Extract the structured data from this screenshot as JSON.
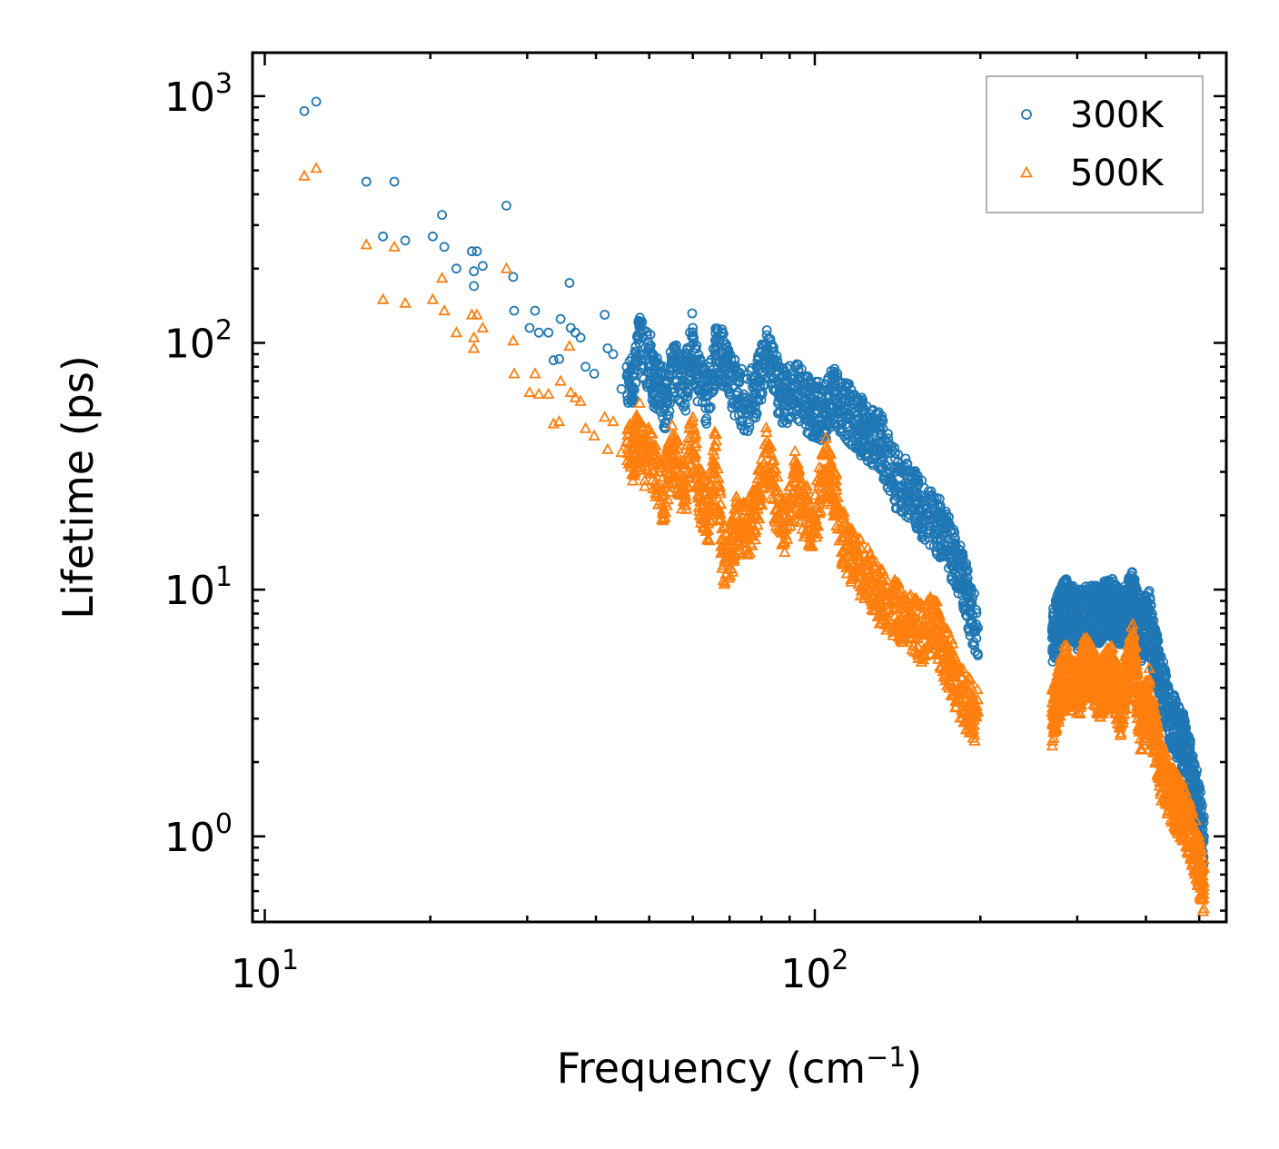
{
  "chart_data": {
    "type": "scatter",
    "title": "",
    "xlabel": "Frequency (cm",
    "xlabel_sup": "−1",
    "xlabel_close": ")",
    "ylabel": "Lifetime (ps)",
    "xscale": "log",
    "yscale": "log",
    "xlim": [
      9.5,
      560
    ],
    "ylim": [
      0.45,
      1500
    ],
    "x_ticks": [
      {
        "value": 10,
        "base": "10",
        "exp": "1"
      },
      {
        "value": 100,
        "base": "10",
        "exp": "2"
      }
    ],
    "y_ticks": [
      {
        "value": 1,
        "base": "10",
        "exp": "0"
      },
      {
        "value": 10,
        "base": "10",
        "exp": "1"
      },
      {
        "value": 100,
        "base": "10",
        "exp": "2"
      },
      {
        "value": 1000,
        "base": "10",
        "exp": "3"
      }
    ],
    "legend_position": "top-right",
    "colors": {
      "300K": "#1f77b4",
      "500K": "#ff7f0e"
    },
    "series": [
      {
        "name": "300K",
        "marker": "circle",
        "color": "#1f77b4",
        "points": [
          [
            11.8,
            870
          ],
          [
            12.4,
            950
          ],
          [
            15.3,
            450
          ],
          [
            16.4,
            270
          ],
          [
            17.2,
            450
          ],
          [
            18.0,
            260
          ],
          [
            20.2,
            270
          ],
          [
            21.0,
            330
          ],
          [
            21.2,
            245
          ],
          [
            22.3,
            200
          ],
          [
            23.8,
            235
          ],
          [
            24.0,
            195
          ],
          [
            24.0,
            170
          ],
          [
            24.3,
            235
          ],
          [
            24.9,
            205
          ],
          [
            27.5,
            360
          ],
          [
            28.3,
            185
          ],
          [
            28.4,
            135
          ],
          [
            30.3,
            115
          ],
          [
            31.0,
            135
          ],
          [
            31.5,
            110
          ],
          [
            32.8,
            110
          ],
          [
            33.5,
            85
          ],
          [
            34.3,
            86
          ],
          [
            34.5,
            125
          ],
          [
            35.8,
            175
          ],
          [
            36.0,
            115
          ],
          [
            36.7,
            110
          ],
          [
            37.5,
            105
          ],
          [
            38.3,
            80
          ],
          [
            39.7,
            75
          ],
          [
            41.5,
            130
          ],
          [
            42.0,
            95
          ],
          [
            43.0,
            90
          ],
          [
            44.5,
            65
          ],
          [
            45.5,
            80
          ],
          [
            47.0,
            78
          ],
          [
            48.0,
            110
          ],
          [
            49.0,
            90
          ],
          [
            50.0,
            95
          ],
          [
            51.0,
            75
          ],
          [
            52.0,
            72
          ],
          [
            53.0,
            65
          ],
          [
            54.0,
            60
          ],
          [
            55.0,
            85
          ],
          [
            56.5,
            82
          ],
          [
            58.0,
            70
          ],
          [
            60.0,
            115
          ],
          [
            61.0,
            78
          ],
          [
            62.0,
            70
          ],
          [
            64.0,
            65
          ],
          [
            66.0,
            95
          ],
          [
            68.0,
            92
          ],
          [
            70.0,
            75
          ],
          [
            72.0,
            70
          ],
          [
            75.0,
            60
          ],
          [
            78.0,
            68
          ],
          [
            82.0,
            96
          ],
          [
            85.0,
            75
          ],
          [
            88.0,
            63
          ],
          [
            92.0,
            72
          ],
          [
            96.0,
            60
          ],
          [
            100.0,
            58
          ],
          [
            104.0,
            55
          ],
          [
            108.0,
            66
          ],
          [
            112.0,
            60
          ],
          [
            118.0,
            52
          ],
          [
            125.0,
            46
          ],
          [
            132.0,
            42
          ],
          [
            140.0,
            30
          ],
          [
            148.0,
            27
          ],
          [
            158.0,
            22
          ],
          [
            165.0,
            20
          ],
          [
            172.0,
            18
          ],
          [
            178.0,
            15
          ],
          [
            185.0,
            12
          ],
          [
            192.0,
            9
          ],
          [
            198.0,
            7
          ],
          [
            270.0,
            6.8
          ],
          [
            285.0,
            9.2
          ],
          [
            300.0,
            8.0
          ],
          [
            310.0,
            8.4
          ],
          [
            330.0,
            8.5
          ],
          [
            345.0,
            9.2
          ],
          [
            360.0,
            8.0
          ],
          [
            378.0,
            9.6
          ],
          [
            392.0,
            7.2
          ],
          [
            405.0,
            8.2
          ],
          [
            425.0,
            4.5
          ],
          [
            445.0,
            3.2
          ],
          [
            470.0,
            2.5
          ],
          [
            490.0,
            1.7
          ],
          [
            505.0,
            1.2
          ],
          [
            510.0,
            1.0
          ]
        ]
      },
      {
        "name": "500K",
        "marker": "triangle",
        "color": "#ff7f0e",
        "points": [
          [
            11.8,
            475
          ],
          [
            12.4,
            510
          ],
          [
            15.3,
            250
          ],
          [
            16.4,
            150
          ],
          [
            17.2,
            245
          ],
          [
            18.0,
            145
          ],
          [
            20.2,
            150
          ],
          [
            21.0,
            183
          ],
          [
            21.2,
            135
          ],
          [
            22.3,
            110
          ],
          [
            23.8,
            130
          ],
          [
            24.0,
            105
          ],
          [
            24.0,
            95
          ],
          [
            24.3,
            130
          ],
          [
            24.9,
            115
          ],
          [
            27.5,
            200
          ],
          [
            28.3,
            102
          ],
          [
            28.4,
            75
          ],
          [
            30.3,
            63
          ],
          [
            31.0,
            75
          ],
          [
            31.5,
            62
          ],
          [
            32.8,
            62
          ],
          [
            33.5,
            47
          ],
          [
            34.3,
            48
          ],
          [
            34.5,
            70
          ],
          [
            35.8,
            97
          ],
          [
            36.0,
            63
          ],
          [
            36.7,
            60
          ],
          [
            37.5,
            58
          ],
          [
            38.3,
            45
          ],
          [
            39.7,
            42
          ],
          [
            41.5,
            50
          ],
          [
            42.0,
            37
          ],
          [
            43.0,
            48
          ],
          [
            44.5,
            36
          ],
          [
            45.5,
            40
          ],
          [
            47.0,
            38
          ],
          [
            48.0,
            48
          ],
          [
            49.0,
            35
          ],
          [
            50.0,
            40
          ],
          [
            51.0,
            33
          ],
          [
            52.0,
            30
          ],
          [
            53.0,
            25
          ],
          [
            54.0,
            32
          ],
          [
            55.0,
            38
          ],
          [
            56.5,
            33
          ],
          [
            58.0,
            26
          ],
          [
            60.0,
            50
          ],
          [
            61.0,
            30
          ],
          [
            62.0,
            26
          ],
          [
            64.0,
            20
          ],
          [
            66.0,
            38
          ],
          [
            68.0,
            15
          ],
          [
            70.0,
            14
          ],
          [
            72.0,
            20
          ],
          [
            75.0,
            18
          ],
          [
            78.0,
            22
          ],
          [
            82.0,
            40
          ],
          [
            85.0,
            25
          ],
          [
            88.0,
            18
          ],
          [
            92.0,
            30
          ],
          [
            96.0,
            22
          ],
          [
            100.0,
            20
          ],
          [
            104.0,
            35
          ],
          [
            108.0,
            28
          ],
          [
            112.0,
            18
          ],
          [
            118.0,
            14
          ],
          [
            125.0,
            12
          ],
          [
            132.0,
            10
          ],
          [
            140.0,
            9
          ],
          [
            148.0,
            8
          ],
          [
            158.0,
            7
          ],
          [
            165.0,
            8
          ],
          [
            172.0,
            6
          ],
          [
            178.0,
            5
          ],
          [
            185.0,
            4
          ],
          [
            192.0,
            3.5
          ],
          [
            198.0,
            3.2
          ],
          [
            270.0,
            3.2
          ],
          [
            285.0,
            5.0
          ],
          [
            300.0,
            4.0
          ],
          [
            310.0,
            5.4
          ],
          [
            330.0,
            4.2
          ],
          [
            345.0,
            5.1
          ],
          [
            360.0,
            3.5
          ],
          [
            378.0,
            6.2
          ],
          [
            392.0,
            3.0
          ],
          [
            405.0,
            4.0
          ],
          [
            425.0,
            2.0
          ],
          [
            445.0,
            1.6
          ],
          [
            470.0,
            1.3
          ],
          [
            490.0,
            1.0
          ],
          [
            505.0,
            0.75
          ],
          [
            510.0,
            0.65
          ]
        ]
      }
    ]
  }
}
